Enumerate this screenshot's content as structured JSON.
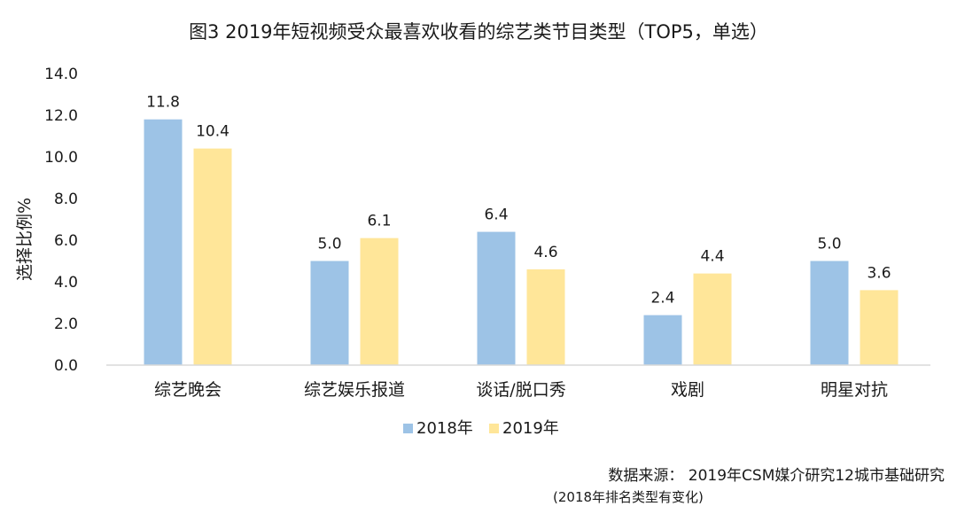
{
  "title": "图3  2019年短视频受众最喜欢收看的综艺类节目类型（TOP5，单选）",
  "chart_data": {
    "type": "bar",
    "categories": [
      "综艺晚会",
      "综艺娱乐报道",
      "谈话/脱口秀",
      "戏剧",
      "明星对抗"
    ],
    "series": [
      {
        "name": "2018年",
        "values": [
          11.8,
          5.0,
          6.4,
          2.4,
          5.0
        ],
        "color": "#9dc3e6"
      },
      {
        "name": "2019年",
        "values": [
          10.4,
          6.1,
          4.6,
          4.4,
          3.6
        ],
        "color": "#ffe699"
      }
    ],
    "ylabel": "选择比例%",
    "ylim": [
      0,
      14
    ],
    "yticks": [
      "0.0",
      "2.0",
      "4.0",
      "6.0",
      "8.0",
      "10.0",
      "12.0",
      "14.0"
    ],
    "grid": false,
    "legend_position": "bottom"
  },
  "source": "数据来源：  2019年CSM媒介研究12城市基础研究",
  "note": "(2018年排名类型有变化)"
}
